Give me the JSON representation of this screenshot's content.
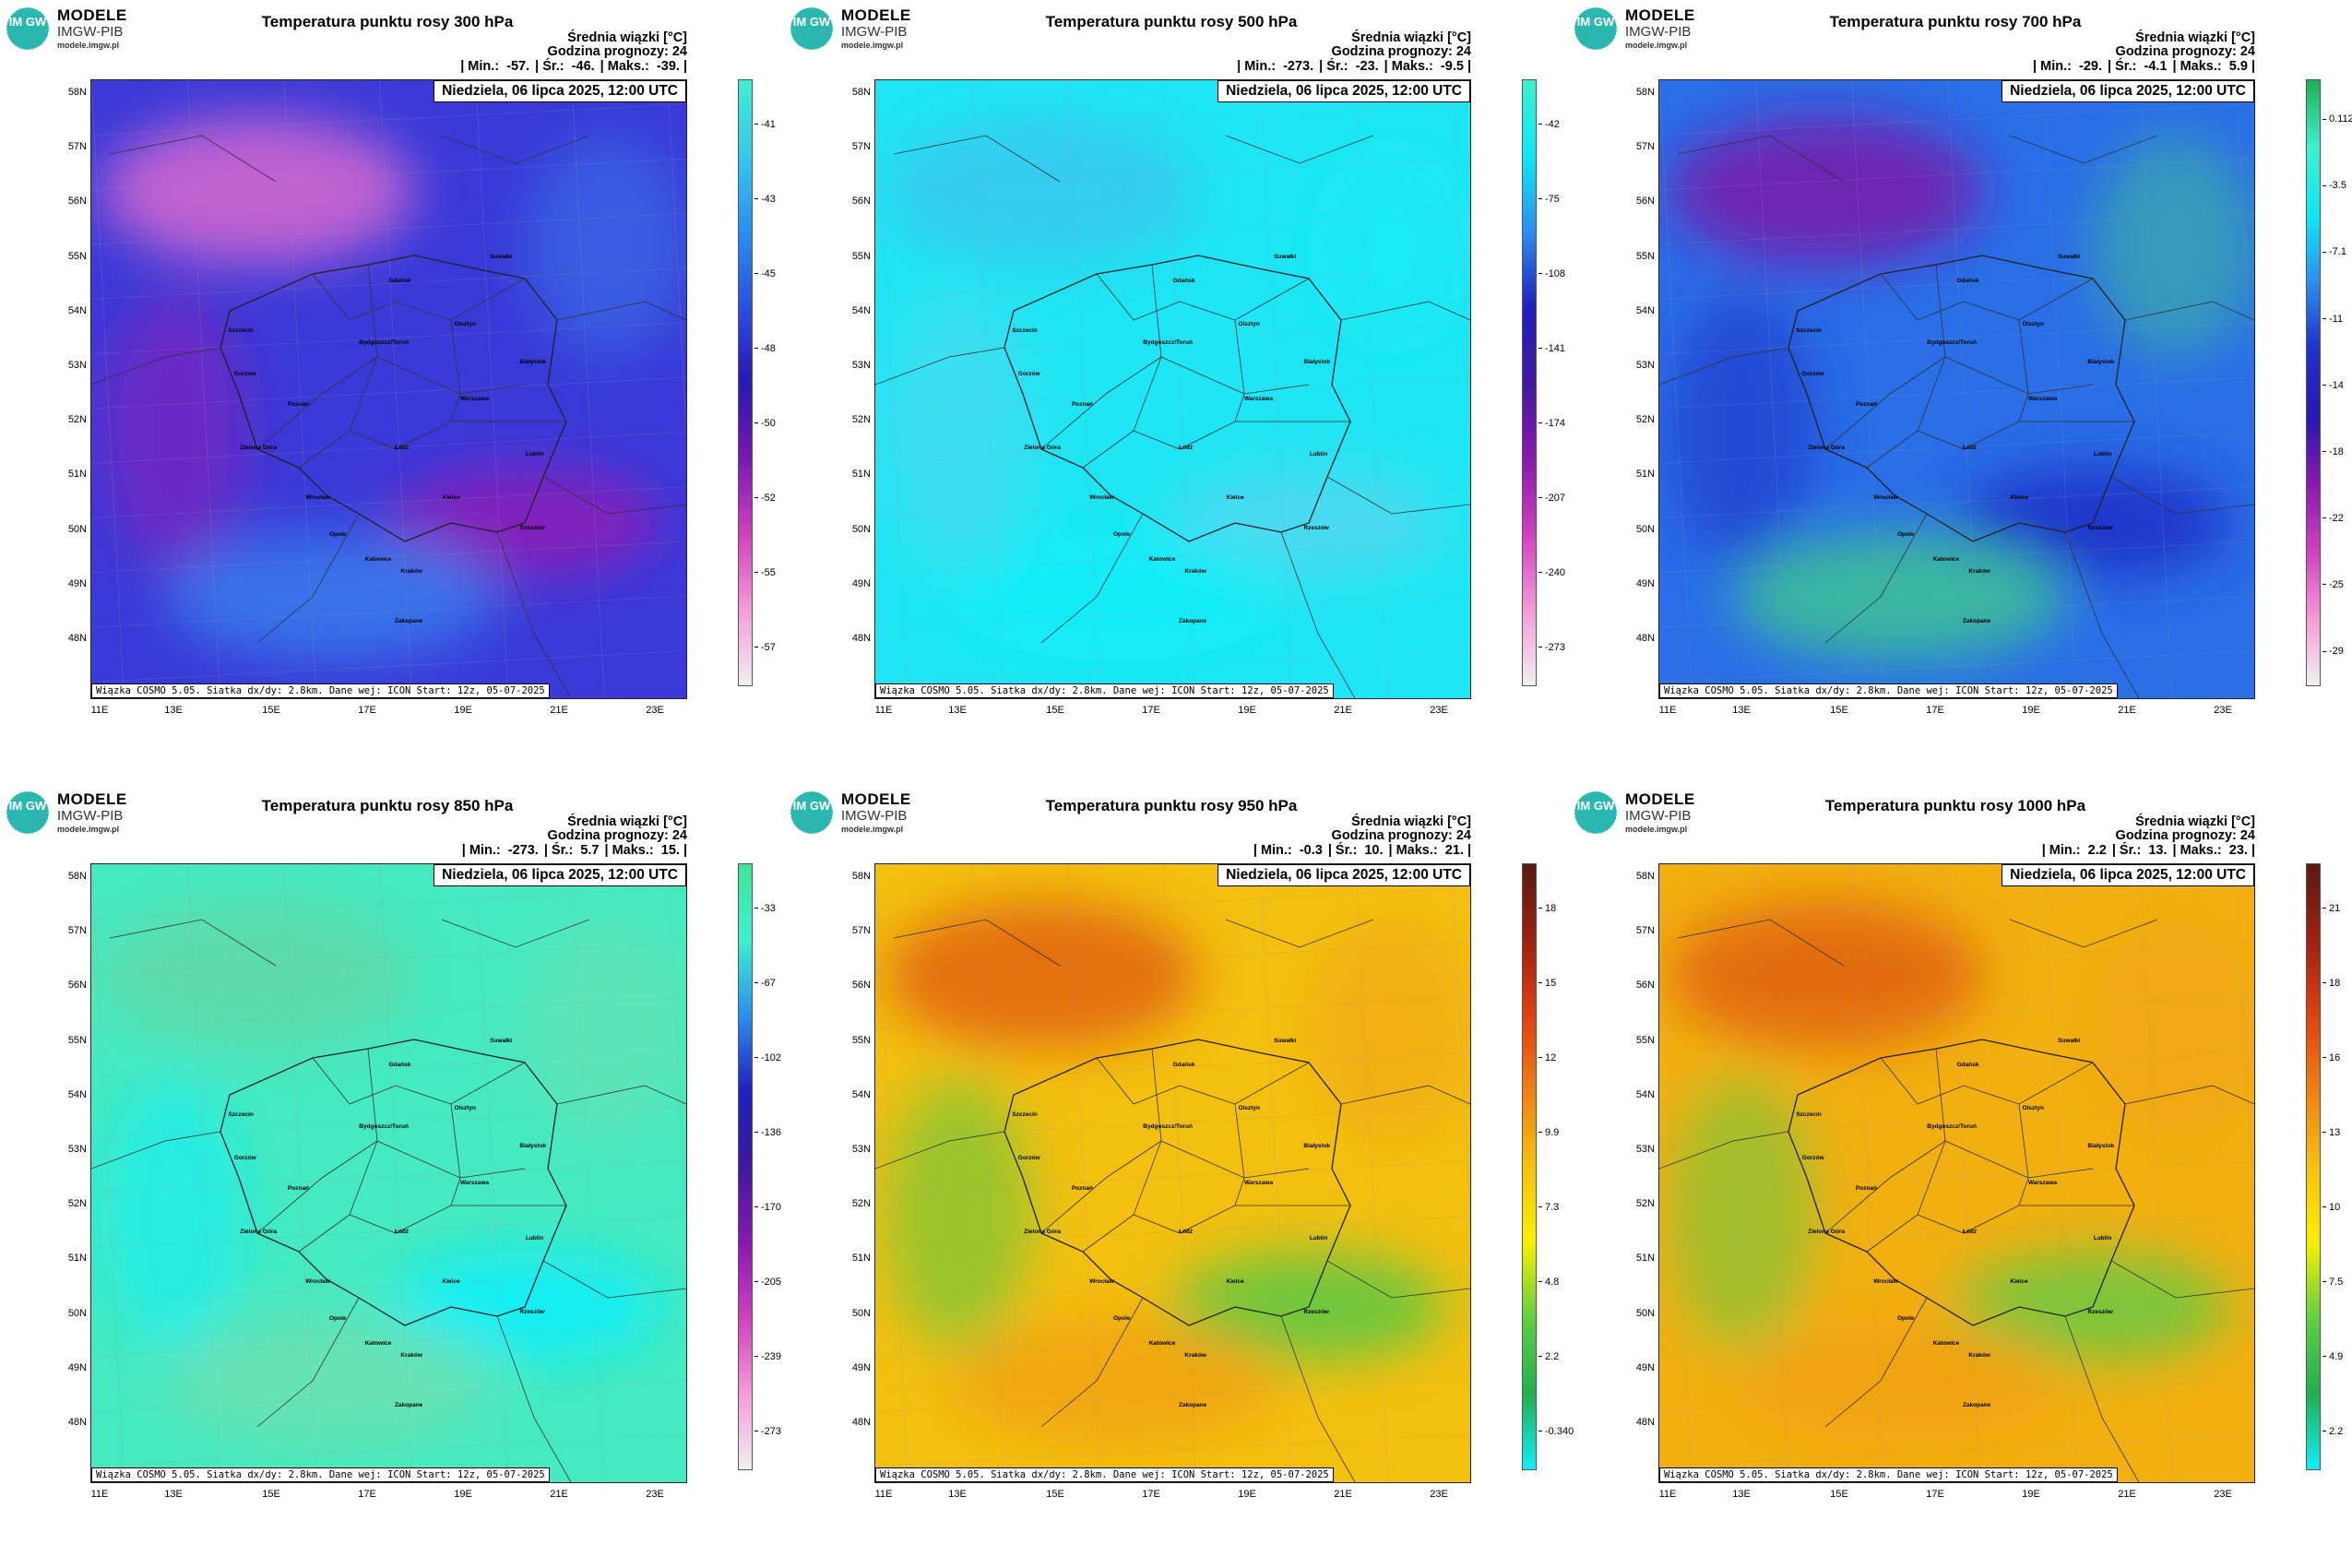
{
  "brand": {
    "name": "MODELE",
    "org": "IMGW-PIB",
    "url": "modele.imgw.pl",
    "badge_text": "IM GW"
  },
  "common": {
    "mean_label": "Średnia wiązki [°C]",
    "forecast_hour": "Godzina prognozy: 24",
    "date": "Niedziela, 06 lipca 2025, 12:00 UTC",
    "footer": "Wiązka COSMO 5.05. Siatka dx/dy: 2.8km. Dane wej: ICON Start: 12z, 05-07-2025",
    "lat_labels": [
      "58N",
      "57N",
      "56N",
      "55N",
      "54N",
      "53N",
      "52N",
      "51N",
      "50N",
      "49N",
      "48N"
    ],
    "lon_labels": [
      "11E",
      "13E",
      "15E",
      "17E",
      "19E",
      "21E",
      "23E"
    ],
    "cities": [
      "Gdańsk",
      "Suwałki",
      "Olsztyn",
      "Szczecin",
      "Bydgoszcz/Toruń",
      "Białystok",
      "Gorzów",
      "Poznań",
      "Warszawa",
      "Zielona Góra",
      "Łódź",
      "Lublin",
      "Wrocław",
      "Kielce",
      "Opole",
      "Rzeszów",
      "Katowice",
      "Kraków",
      "Zakopane"
    ]
  },
  "panels": [
    {
      "title": "Temperatura punktu rosy 300 hPa",
      "stats": {
        "min": "| Min.:  -57.",
        "mean": "| Śr.:  -46.",
        "max": "| Maks.:  -39. |"
      },
      "colorbar": {
        "ticks": [
          "-41",
          "-43",
          "-45",
          "-48",
          "-50",
          "-52",
          "-55",
          "-57"
        ],
        "colors": [
          "#3ef0cf",
          "#37c7ef",
          "#2a8ff0",
          "#2a50e0",
          "#2618b4",
          "#7a18b0",
          "#d040c0",
          "#f59ad8",
          "#f0f0f0"
        ]
      },
      "map_colors": {
        "base": "#3a3ad8",
        "blob1": "#d86ad0",
        "blob2": "#8a20b8",
        "blob3": "#3a80ee"
      }
    },
    {
      "title": "Temperatura punktu rosy 500 hPa",
      "stats": {
        "min": "| Min.:  -273.",
        "mean": "| Śr.:  -23.",
        "max": "| Maks.:  -9.5 |"
      },
      "colorbar": {
        "ticks": [
          "-42",
          "-75",
          "-108",
          "-141",
          "-174",
          "-207",
          "-240",
          "-273"
        ],
        "colors": [
          "#3ef0cf",
          "#10e6f6",
          "#2a8ff0",
          "#1e20c0",
          "#4018a0",
          "#8a18b0",
          "#d040c0",
          "#f59ad8",
          "#f0f0f0"
        ]
      },
      "map_colors": {
        "base": "#1ee6f4",
        "blob1": "#38c8ef",
        "blob2": "#50d8f0",
        "blob3": "#10eef8"
      }
    },
    {
      "title": "Temperatura punktu rosy 700 hPa",
      "stats": {
        "min": "| Min.:  -29.",
        "mean": "| Śr.:  -4.1",
        "max": "| Maks.:  5.9 |"
      },
      "colorbar": {
        "ticks": [
          "0.112",
          "-3.5",
          "-7.1",
          "-11",
          "-14",
          "-18",
          "-22",
          "-25",
          "-29"
        ],
        "colors": [
          "#20b050",
          "#3ef0cf",
          "#10e6f6",
          "#2a8ff0",
          "#2030d0",
          "#2618b4",
          "#8a18b0",
          "#d040c0",
          "#f59ad8",
          "#f0f0f0"
        ]
      },
      "map_colors": {
        "base": "#2a6ee8",
        "blob1": "#7a1aa8",
        "blob2": "#2030c8",
        "blob3": "#40c890"
      }
    },
    {
      "title": "Temperatura punktu rosy 850 hPa",
      "stats": {
        "min": "| Min.:  -273.",
        "mean": "| Śr.:  5.7",
        "max": "| Maks.:  15. |"
      },
      "colorbar": {
        "ticks": [
          "-33",
          "-67",
          "-102",
          "-136",
          "-170",
          "-205",
          "-239",
          "-273"
        ],
        "colors": [
          "#40e49a",
          "#3ef0cf",
          "#2a8ff0",
          "#1e20c0",
          "#4018a0",
          "#8a18b0",
          "#d040c0",
          "#f59ad8",
          "#f0f0f0"
        ]
      },
      "map_colors": {
        "base": "#46eac0",
        "blob1": "#60d8a8",
        "blob2": "#10eef8",
        "blob3": "#70e0b0"
      }
    },
    {
      "title": "Temperatura punktu rosy 950 hPa",
      "stats": {
        "min": "| Min.:  -0.3",
        "mean": "| Śr.:  10.",
        "max": "| Maks.:  21. |"
      },
      "colorbar": {
        "ticks": [
          "18",
          "15",
          "12",
          "9.9",
          "7.3",
          "4.8",
          "2.2",
          "-0.340"
        ],
        "colors": [
          "#5a1a10",
          "#a02010",
          "#e04010",
          "#f08010",
          "#f8c010",
          "#f8f000",
          "#60d040",
          "#20b050",
          "#10eef8"
        ]
      },
      "map_colors": {
        "base": "#f4c010",
        "blob1": "#e06010",
        "blob2": "#60c840",
        "blob3": "#f0a010"
      }
    },
    {
      "title": "Temperatura punktu rosy 1000 hPa",
      "stats": {
        "min": "| Min.:  2.2",
        "mean": "| Śr.:  13.",
        "max": "| Maks.:  23. |"
      },
      "colorbar": {
        "ticks": [
          "21",
          "18",
          "16",
          "13",
          "10",
          "7.5",
          "4.9",
          "2.2"
        ],
        "colors": [
          "#5a1a10",
          "#a02010",
          "#e04010",
          "#f08010",
          "#f8c010",
          "#f8f000",
          "#60d040",
          "#20b050",
          "#10eef8"
        ]
      },
      "map_colors": {
        "base": "#f2b010",
        "blob1": "#e06010",
        "blob2": "#70c840",
        "blob3": "#f0a010"
      }
    }
  ]
}
